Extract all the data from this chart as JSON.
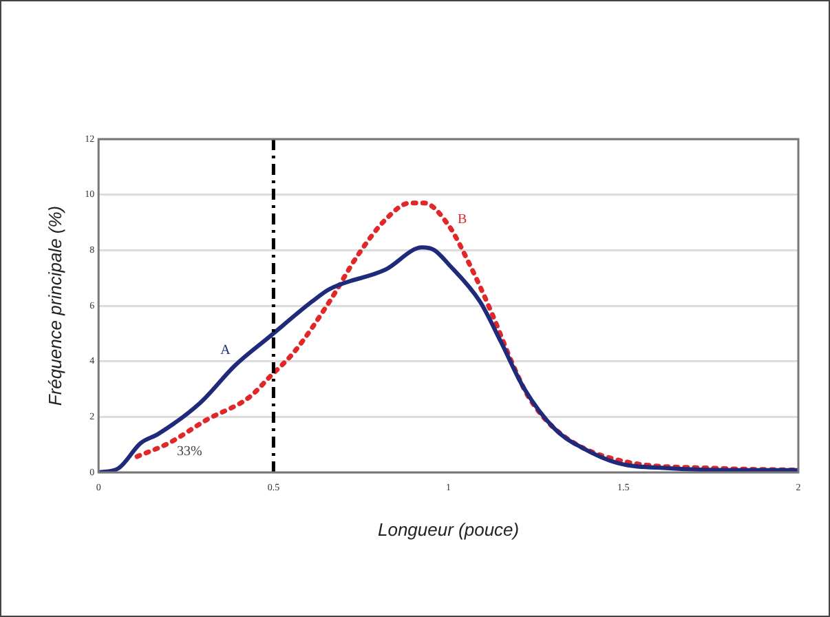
{
  "chart_data": {
    "type": "line",
    "xlabel": "Longueur (pouce)",
    "ylabel": "Fréquence principale (%)",
    "xlim": [
      0,
      2
    ],
    "xticks": [
      0,
      0.5,
      1,
      1.5,
      2
    ],
    "ylim": [
      0,
      12
    ],
    "yticks": [
      0,
      2,
      4,
      6,
      8,
      10,
      12
    ],
    "grid": "y",
    "marker": "none",
    "series": [
      {
        "name": "A",
        "color": "#1f2a7a",
        "line_style": "solid",
        "x": [
          0,
          0.057,
          0.12,
          0.17,
          0.29,
          0.39,
          0.49,
          0.61,
          0.66,
          0.82,
          0.925,
          0.96,
          1.0,
          1.09,
          1.15,
          1.215,
          1.305,
          1.38,
          1.485,
          1.63,
          1.82,
          2.0
        ],
        "values": [
          0,
          0.15,
          1.05,
          1.38,
          2.5,
          3.85,
          4.9,
          6.15,
          6.6,
          7.3,
          8.1,
          8.0,
          7.5,
          6.15,
          4.7,
          3.05,
          1.55,
          0.9,
          0.33,
          0.15,
          0.08,
          0.08
        ]
      },
      {
        "name": "B",
        "color": "#e0282a",
        "line_style": "dotted",
        "x": [
          0.11,
          0.2,
          0.31,
          0.43,
          0.49,
          0.56,
          0.66,
          0.74,
          0.82,
          0.89,
          0.93,
          1.0,
          1.06,
          1.125,
          1.18,
          1.23,
          1.32,
          1.5,
          1.76,
          2.0
        ],
        "values": [
          0.57,
          1.05,
          1.9,
          2.7,
          3.45,
          4.35,
          6.15,
          7.8,
          9.1,
          9.7,
          9.7,
          8.9,
          7.5,
          5.7,
          4.0,
          2.7,
          1.4,
          0.4,
          0.15,
          0.08
        ]
      }
    ],
    "ref_lines": [
      {
        "axis": "x",
        "value": 0.5,
        "color": "#000000",
        "line_style": "dashdot"
      }
    ],
    "annotations": [
      "33%"
    ],
    "legend": false
  }
}
